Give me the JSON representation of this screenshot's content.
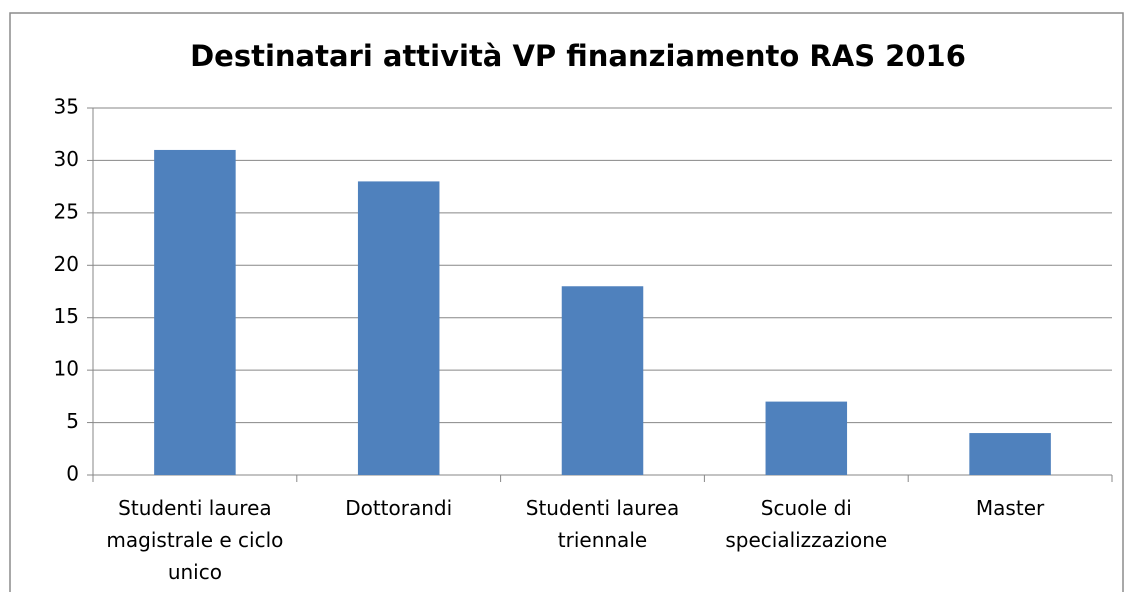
{
  "chart_data": {
    "type": "bar",
    "title": "Destinatari attività VP finanziamento RAS 2016",
    "categories": [
      "Studenti laurea magistrale e ciclo unico",
      "Dottorandi",
      "Studenti laurea triennale",
      "Scuole di specializzazione",
      "Master"
    ],
    "values": [
      31,
      28,
      18,
      7,
      4
    ],
    "color": "#4f81bd",
    "ylim": [
      0,
      35
    ],
    "yticks": [
      0,
      5,
      10,
      15,
      20,
      25,
      30,
      35
    ],
    "grid": true
  }
}
